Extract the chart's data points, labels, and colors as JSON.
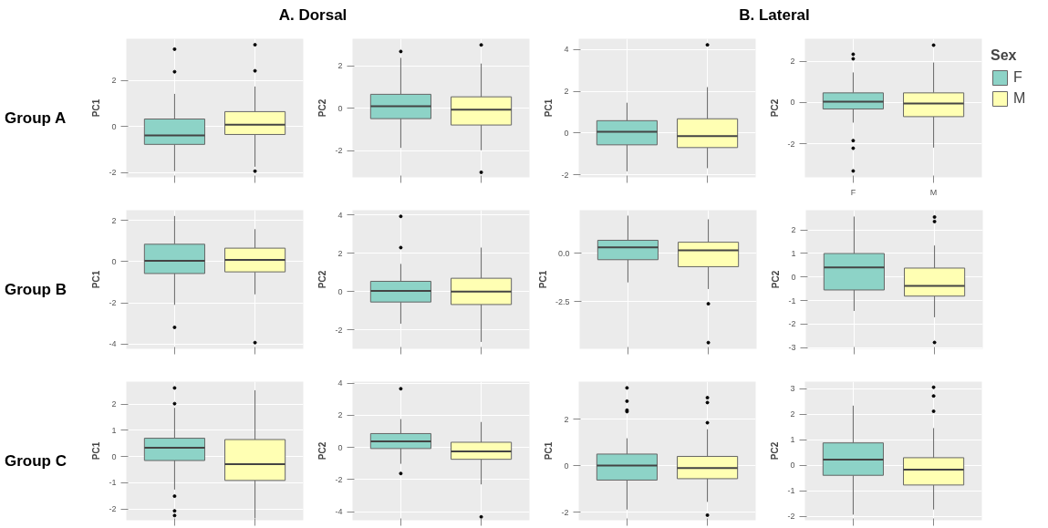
{
  "chart_data": [
    {
      "type": "box",
      "annotations": [
        "A. Dorsal",
        "Group A"
      ],
      "categories": [
        null,
        null
      ],
      "ylabel": "PC1",
      "ylim": [
        -2.21,
        3.8
      ],
      "yticks": [
        -2,
        0,
        2
      ],
      "grid": true,
      "tick_labels": "y",
      "series": [
        {
          "color": "#8dd3c7",
          "boxes": [
            {
              "low": -1.94,
              "q1": -0.78,
              "median": -0.39,
              "q3": 0.32,
              "high": 1.41,
              "outliers": [
                3.35,
                2.37
              ]
            },
            null
          ]
        },
        {
          "color": "#ffffb3",
          "boxes": [
            null,
            {
              "low": -1.75,
              "q1": -0.35,
              "median": 0.07,
              "q3": 0.64,
              "high": 1.73,
              "outliers": [
                3.54,
                2.41,
                -1.94
              ]
            }
          ]
        }
      ]
    },
    {
      "type": "box",
      "categories": [
        null,
        null
      ],
      "ylabel": "PC2",
      "ylim": [
        -3.25,
        3.29
      ],
      "yticks": [
        -2,
        0,
        2
      ],
      "grid": true,
      "tick_labels": "y",
      "series": [
        {
          "color": "#8dd3c7",
          "boxes": [
            {
              "low": -1.86,
              "q1": -0.48,
              "median": 0.11,
              "q3": 0.67,
              "high": 2.39,
              "outliers": [
                2.69
              ]
            },
            null
          ]
        },
        {
          "color": "#ffffb3",
          "boxes": [
            null,
            {
              "low": -1.97,
              "q1": -0.78,
              "median": -0.05,
              "q3": 0.55,
              "high": 2.12,
              "outliers": [
                3.0,
                -3.01
              ]
            }
          ]
        }
      ]
    },
    {
      "type": "box",
      "annotations": [
        "B. Lateral"
      ],
      "categories": [
        null,
        null
      ],
      "ylabel": "PC1",
      "ylim": [
        -2.13,
        4.52
      ],
      "yticks": [
        -2,
        0,
        2,
        4
      ],
      "grid": true,
      "tick_labels": "y",
      "series": [
        {
          "color": "#8dd3c7",
          "boxes": [
            {
              "low": -1.84,
              "q1": -0.57,
              "median": 0.06,
              "q3": 0.59,
              "high": 1.45
            },
            null
          ]
        },
        {
          "color": "#ffffb3",
          "boxes": [
            null,
            {
              "low": -1.69,
              "q1": -0.7,
              "median": -0.15,
              "q3": 0.68,
              "high": 2.2,
              "outliers": [
                4.23
              ]
            }
          ]
        }
      ]
    },
    {
      "type": "box",
      "categories": [
        "F",
        "M"
      ],
      "ylabel": "PC2",
      "ylim": [
        -3.62,
        3.09
      ],
      "yticks": [
        -2,
        0,
        2
      ],
      "grid": true,
      "legend": "right",
      "legend_title": "Sex",
      "series": [
        {
          "name": "F",
          "color": "#8dd3c7",
          "boxes": [
            {
              "low": -0.97,
              "q1": -0.31,
              "median": 0.04,
              "q3": 0.47,
              "high": 1.46,
              "outliers": [
                2.34,
                2.12,
                -1.84,
                -2.21,
                -3.31
              ]
            },
            null
          ]
        },
        {
          "name": "M",
          "color": "#ffffb3",
          "boxes": [
            null,
            {
              "low": -2.18,
              "q1": -0.68,
              "median": -0.04,
              "q3": 0.47,
              "high": 1.94,
              "outliers": [
                2.78
              ]
            }
          ]
        }
      ]
    },
    {
      "type": "box",
      "annotations": [
        "Group B"
      ],
      "categories": [
        null,
        null
      ],
      "ylabel": "PC1",
      "ylim": [
        -4.23,
        2.49
      ],
      "yticks": [
        -4,
        -2,
        0,
        2
      ],
      "grid": true,
      "tick_labels": "y",
      "series": [
        {
          "color": "#8dd3c7",
          "boxes": [
            {
              "low": -2.1,
              "q1": -0.58,
              "median": 0.04,
              "q3": 0.84,
              "high": 2.21,
              "outliers": [
                -3.19
              ]
            },
            null
          ]
        },
        {
          "color": "#ffffb3",
          "boxes": [
            null,
            {
              "low": -1.59,
              "q1": -0.5,
              "median": 0.08,
              "q3": 0.65,
              "high": 1.57,
              "outliers": [
                -3.93
              ]
            }
          ]
        }
      ]
    },
    {
      "type": "box",
      "categories": [
        null,
        null
      ],
      "ylabel": "PC2",
      "ylim": [
        -2.98,
        4.25
      ],
      "yticks": [
        -2,
        0,
        2,
        4
      ],
      "grid": true,
      "tick_labels": "y",
      "series": [
        {
          "color": "#8dd3c7",
          "boxes": [
            {
              "low": -1.67,
              "q1": -0.54,
              "median": 0.04,
              "q3": 0.54,
              "high": 1.45,
              "outliers": [
                3.93,
                2.3
              ]
            },
            null
          ]
        },
        {
          "color": "#ffffb3",
          "boxes": [
            null,
            {
              "low": -2.62,
              "q1": -0.67,
              "median": 0.0,
              "q3": 0.7,
              "high": 2.3
            }
          ]
        }
      ]
    },
    {
      "type": "box",
      "categories": [
        null,
        null
      ],
      "ylabel": "PC1",
      "ylim": [
        -4.93,
        2.21
      ],
      "yticks": [
        {
          "value": -2.5,
          "label": "-2.5"
        },
        {
          "value": 0,
          "label": "0.0"
        }
      ],
      "grid": true,
      "tick_labels": "y",
      "series": [
        {
          "color": "#8dd3c7",
          "boxes": [
            {
              "low": -1.51,
              "q1": -0.34,
              "median": 0.3,
              "q3": 0.66,
              "high": 1.93
            },
            null
          ]
        },
        {
          "color": "#ffffb3",
          "boxes": [
            null,
            {
              "low": -1.85,
              "q1": -0.7,
              "median": 0.14,
              "q3": 0.56,
              "high": 1.74,
              "outliers": [
                -2.61,
                -4.61
              ]
            }
          ]
        }
      ]
    },
    {
      "type": "box",
      "categories": [
        null,
        null
      ],
      "ylabel": "PC2",
      "ylim": [
        -3.05,
        2.84
      ],
      "yticks": [
        -3,
        -2,
        -1,
        0,
        1,
        2
      ],
      "grid": true,
      "tick_labels": "y",
      "series": [
        {
          "color": "#8dd3c7",
          "boxes": [
            {
              "low": -1.44,
              "q1": -0.55,
              "median": 0.41,
              "q3": 1.0,
              "high": 2.57
            },
            null
          ]
        },
        {
          "color": "#ffffb3",
          "boxes": [
            null,
            {
              "low": -1.71,
              "q1": -0.81,
              "median": -0.38,
              "q3": 0.38,
              "high": 1.34,
              "outliers": [
                2.55,
                2.36,
                -2.78
              ]
            }
          ]
        }
      ]
    },
    {
      "type": "box",
      "annotations": [
        "Group C"
      ],
      "categories": [
        null,
        null
      ],
      "ylabel": "PC1",
      "ylim": [
        -2.43,
        2.86
      ],
      "yticks": [
        -2,
        -1,
        0,
        1,
        2
      ],
      "grid": true,
      "tick_labels": "y",
      "series": [
        {
          "color": "#8dd3c7",
          "boxes": [
            {
              "low": -1.26,
              "q1": -0.15,
              "median": 0.34,
              "q3": 0.7,
              "high": 1.86,
              "outliers": [
                2.62,
                2.02,
                -1.51,
                -2.07,
                -2.25
              ]
            },
            null
          ]
        },
        {
          "color": "#ffffb3",
          "boxes": [
            null,
            {
              "low": -2.35,
              "q1": -0.91,
              "median": -0.29,
              "q3": 0.65,
              "high": 2.53
            }
          ]
        }
      ]
    },
    {
      "type": "box",
      "categories": [
        null,
        null
      ],
      "ylabel": "PC2",
      "ylim": [
        -4.53,
        4.09
      ],
      "yticks": [
        -4,
        -2,
        0,
        2,
        4
      ],
      "grid": true,
      "tick_labels": "y",
      "series": [
        {
          "color": "#8dd3c7",
          "boxes": [
            {
              "low": -1.02,
              "q1": -0.07,
              "median": 0.37,
              "q3": 0.86,
              "high": 1.76,
              "outliers": [
                3.65,
                -1.62
              ]
            },
            null
          ]
        },
        {
          "color": "#ffffb3",
          "boxes": [
            null,
            {
              "low": -2.3,
              "q1": -0.74,
              "median": -0.25,
              "q3": 0.32,
              "high": 1.58,
              "outliers": [
                -4.32
              ]
            }
          ]
        }
      ]
    },
    {
      "type": "box",
      "categories": [
        null,
        null
      ],
      "ylabel": "PC1",
      "ylim": [
        -2.35,
        3.62
      ],
      "yticks": [
        -2,
        0,
        2
      ],
      "grid": true,
      "tick_labels": "y",
      "series": [
        {
          "color": "#8dd3c7",
          "boxes": [
            {
              "low": -1.89,
              "q1": -0.62,
              "median": 0.01,
              "q3": 0.5,
              "high": 1.18,
              "outliers": [
                3.35,
                2.78,
                2.39,
                2.33
              ]
            },
            null
          ]
        },
        {
          "color": "#ffffb3",
          "boxes": [
            null,
            {
              "low": -1.56,
              "q1": -0.56,
              "median": -0.1,
              "q3": 0.4,
              "high": 1.57,
              "outliers": [
                2.93,
                2.72,
                1.85,
                -2.13
              ]
            }
          ]
        }
      ]
    },
    {
      "type": "box",
      "categories": [
        null,
        null
      ],
      "ylabel": "PC2",
      "ylim": [
        -2.16,
        3.27
      ],
      "yticks": [
        -2,
        -1,
        0,
        1,
        2,
        3
      ],
      "grid": true,
      "tick_labels": "y",
      "series": [
        {
          "color": "#8dd3c7",
          "boxes": [
            {
              "low": -1.94,
              "q1": -0.4,
              "median": 0.22,
              "q3": 0.87,
              "high": 2.33
            },
            null
          ]
        },
        {
          "color": "#ffffb3",
          "boxes": [
            null,
            {
              "low": -1.74,
              "q1": -0.78,
              "median": -0.18,
              "q3": 0.29,
              "high": 1.45,
              "outliers": [
                3.05,
                2.71,
                2.11
              ]
            }
          ]
        }
      ]
    }
  ]
}
